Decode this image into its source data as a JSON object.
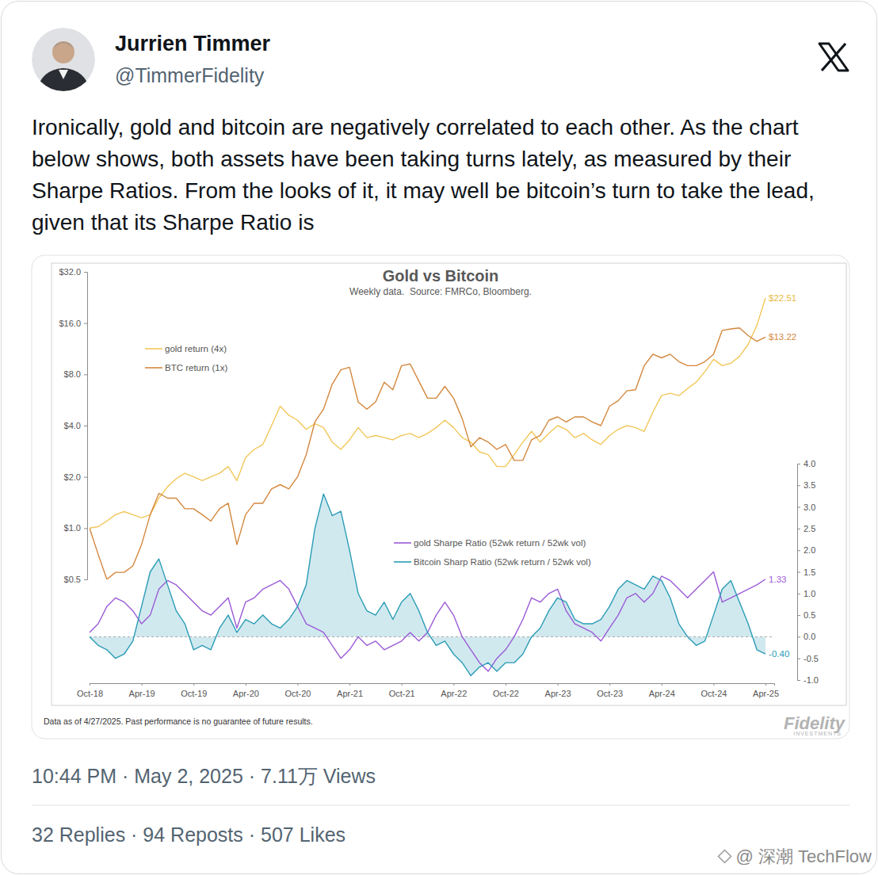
{
  "tweet": {
    "name": "Jurrien Timmer",
    "handle": "@TimmerFidelity",
    "text": "Ironically, gold and bitcoin are negatively correlated to each other. As the chart below shows, both assets have been taking turns lately, as measured by their Sharpe Ratios. From the looks of it, it may well be bitcoin’s turn to take the lead, given that its Sharpe Ratio is",
    "meta": "10:44 PM · May 2, 2025 · 7.11万 Views",
    "stats": "32 Replies · 94 Reposts · 507 Likes",
    "watermark": "@ 深潮 TechFlow"
  },
  "chart_data": [
    {
      "type": "line",
      "title": "Gold vs Bitcoin",
      "subtitle": "Weekly data.  Source: FMRCo, Bloomberg.",
      "log": "y",
      "tick_labels": "y",
      "legend": "upper left",
      "x": [
        0,
        1,
        2,
        3,
        4,
        5,
        6,
        7,
        8,
        9,
        10,
        11,
        12,
        13,
        14,
        15,
        16,
        17,
        18,
        19,
        20,
        21,
        22,
        23,
        24,
        25,
        26,
        27,
        28,
        29,
        30,
        31,
        32,
        33,
        34,
        35,
        36,
        37,
        38,
        39,
        40,
        41,
        42,
        43,
        44,
        45,
        46,
        47,
        48,
        49,
        50,
        51,
        52,
        53,
        54,
        55,
        56,
        57,
        58,
        59,
        60,
        61,
        62,
        63,
        64,
        65,
        66,
        67,
        68,
        69,
        70,
        71,
        72,
        73,
        74,
        75,
        76,
        77,
        78
      ],
      "xlim": [
        0,
        79
      ],
      "ylim": [
        0.5,
        32
      ],
      "yticks": [
        {
          "value": 0.5,
          "label": "$0.5"
        },
        {
          "value": 1,
          "label": "$1.0"
        },
        {
          "value": 2,
          "label": "$2.0"
        },
        {
          "value": 4,
          "label": "$4.0"
        },
        {
          "value": 8,
          "label": "$8.0"
        },
        {
          "value": 16,
          "label": "$16.0"
        },
        {
          "value": 32,
          "label": "$32.0"
        }
      ],
      "series": [
        {
          "name": "gold return (4x)",
          "color": "#f2c75a",
          "values": [
            1.0,
            1.02,
            1.1,
            1.2,
            1.25,
            1.2,
            1.15,
            1.2,
            1.5,
            1.75,
            1.95,
            2.1,
            2.0,
            1.9,
            2.0,
            2.1,
            2.3,
            1.9,
            2.6,
            2.9,
            3.1,
            4.0,
            5.2,
            4.6,
            4.3,
            3.8,
            4.1,
            3.9,
            3.2,
            2.9,
            3.3,
            3.9,
            3.4,
            3.5,
            3.4,
            3.3,
            3.5,
            3.6,
            3.4,
            3.6,
            3.9,
            4.3,
            3.9,
            3.4,
            3.2,
            2.8,
            2.7,
            2.3,
            2.3,
            2.7,
            3.2,
            3.7,
            3.2,
            3.6,
            4.0,
            3.8,
            3.4,
            3.6,
            3.3,
            3.1,
            3.5,
            3.8,
            4.0,
            3.9,
            3.7,
            4.8,
            6.0,
            6.2,
            6.0,
            6.6,
            7.2,
            8.3,
            9.8,
            9.0,
            9.3,
            10.2,
            12.0,
            15.5,
            22.51
          ]
        },
        {
          "name": "BTC return (1x)",
          "color": "#d4873d",
          "values": [
            1.0,
            0.7,
            0.5,
            0.55,
            0.55,
            0.6,
            0.8,
            1.2,
            1.6,
            1.5,
            1.5,
            1.3,
            1.3,
            1.2,
            1.1,
            1.3,
            1.4,
            0.8,
            1.2,
            1.4,
            1.4,
            1.7,
            1.8,
            1.7,
            2.0,
            2.7,
            4.2,
            5.0,
            7.0,
            8.5,
            8.8,
            5.5,
            5.0,
            5.5,
            7.2,
            6.5,
            9.0,
            9.2,
            7.3,
            5.8,
            5.8,
            6.8,
            5.8,
            4.4,
            3.0,
            3.4,
            3.2,
            2.9,
            3.1,
            2.5,
            2.5,
            3.3,
            3.5,
            4.3,
            4.5,
            4.2,
            4.5,
            4.5,
            4.2,
            4.0,
            5.2,
            5.6,
            6.4,
            6.5,
            9.0,
            10.5,
            10.0,
            10.5,
            9.5,
            9.0,
            9.0,
            9.5,
            10.5,
            14.5,
            14.8,
            15.0,
            13.5,
            12.5,
            13.22
          ]
        }
      ],
      "annotations": [
        {
          "text": "$22.51",
          "x": 78,
          "y": 22.51,
          "color": "#e8b93e"
        },
        {
          "text": "$13.22",
          "x": 78,
          "y": 13.22,
          "color": "#d4873d"
        }
      ]
    },
    {
      "type": "line",
      "legend": "upper center",
      "baseline": 0,
      "x": [
        0,
        1,
        2,
        3,
        4,
        5,
        6,
        7,
        8,
        9,
        10,
        11,
        12,
        13,
        14,
        15,
        16,
        17,
        18,
        19,
        20,
        21,
        22,
        23,
        24,
        25,
        26,
        27,
        28,
        29,
        30,
        31,
        32,
        33,
        34,
        35,
        36,
        37,
        38,
        39,
        40,
        41,
        42,
        43,
        44,
        45,
        46,
        47,
        48,
        49,
        50,
        51,
        52,
        53,
        54,
        55,
        56,
        57,
        58,
        59,
        60,
        61,
        62,
        63,
        64,
        65,
        66,
        67,
        68,
        69,
        70,
        71,
        72,
        73,
        74,
        75,
        76,
        77,
        78
      ],
      "xlim": [
        0,
        79
      ],
      "xticks": [
        {
          "value": 0,
          "label": "Oct-18"
        },
        {
          "value": 6,
          "label": "Apr-19"
        },
        {
          "value": 12,
          "label": "Oct-19"
        },
        {
          "value": 18,
          "label": "Apr-20"
        },
        {
          "value": 24,
          "label": "Oct-20"
        },
        {
          "value": 30,
          "label": "Apr-21"
        },
        {
          "value": 36,
          "label": "Oct-21"
        },
        {
          "value": 42,
          "label": "Apr-22"
        },
        {
          "value": 48,
          "label": "Oct-22"
        },
        {
          "value": 54,
          "label": "Apr-23"
        },
        {
          "value": 60,
          "label": "Oct-23"
        },
        {
          "value": 66,
          "label": "Apr-24"
        },
        {
          "value": 72,
          "label": "Oct-24"
        },
        {
          "value": 78,
          "label": "Apr-25"
        }
      ],
      "ylim": [
        -1,
        4
      ],
      "yticks": [
        {
          "value": -1,
          "label": "-1.0"
        },
        {
          "value": -0.5,
          "label": "-0.5"
        },
        {
          "value": 0,
          "label": "0.0"
        },
        {
          "value": 0.5,
          "label": "0.5"
        },
        {
          "value": 1,
          "label": "1.0"
        },
        {
          "value": 1.5,
          "label": "1.5"
        },
        {
          "value": 2,
          "label": "2.0"
        },
        {
          "value": 2.5,
          "label": "2.5"
        },
        {
          "value": 3,
          "label": "3.0"
        },
        {
          "value": 3.5,
          "label": "3.5"
        },
        {
          "value": 4,
          "label": "4.0"
        }
      ],
      "series": [
        {
          "name": "gold Sharpe Ratio (52wk return / 52wk vol)",
          "color": "#9b5bd6",
          "type": "line",
          "values": [
            0.1,
            0.3,
            0.7,
            0.9,
            0.8,
            0.6,
            0.3,
            0.5,
            1.1,
            1.3,
            1.2,
            1.0,
            0.8,
            0.6,
            0.5,
            0.7,
            0.9,
            0.2,
            0.8,
            0.9,
            1.1,
            1.2,
            1.3,
            1.1,
            0.7,
            0.3,
            0.2,
            0.1,
            -0.2,
            -0.5,
            -0.3,
            0.0,
            -0.2,
            -0.1,
            -0.3,
            -0.2,
            -0.1,
            0.1,
            -0.1,
            0.1,
            0.5,
            0.8,
            0.5,
            0.0,
            -0.3,
            -0.6,
            -0.8,
            -0.5,
            -0.3,
            0.0,
            0.4,
            0.9,
            0.8,
            1.0,
            1.1,
            0.6,
            0.3,
            0.2,
            0.1,
            -0.1,
            0.2,
            0.5,
            0.9,
            1.0,
            0.8,
            1.0,
            1.4,
            1.3,
            1.1,
            0.9,
            1.1,
            1.3,
            1.5,
            0.8,
            0.9,
            1.0,
            1.1,
            1.2,
            1.33
          ]
        },
        {
          "name": "Bitcoin Sharp Ratio (52wk return / 52wk vol)",
          "color": "#2b9cb5",
          "type": "area",
          "values": [
            0.0,
            -0.2,
            -0.3,
            -0.5,
            -0.4,
            -0.1,
            0.7,
            1.5,
            1.8,
            1.2,
            0.6,
            0.3,
            -0.3,
            -0.2,
            -0.3,
            0.2,
            0.5,
            0.1,
            0.4,
            0.3,
            0.5,
            0.3,
            0.2,
            0.4,
            0.7,
            1.2,
            2.5,
            3.3,
            2.8,
            2.9,
            2.0,
            1.0,
            0.6,
            0.5,
            0.8,
            0.4,
            0.8,
            1.0,
            0.6,
            0.1,
            -0.2,
            -0.1,
            -0.4,
            -0.6,
            -0.9,
            -0.7,
            -0.6,
            -0.8,
            -0.6,
            -0.6,
            -0.4,
            0.0,
            0.2,
            0.6,
            0.9,
            0.8,
            0.4,
            0.3,
            0.3,
            0.4,
            0.7,
            1.1,
            1.3,
            1.2,
            1.1,
            1.4,
            1.3,
            0.9,
            0.3,
            0.0,
            -0.2,
            -0.1,
            0.5,
            1.1,
            1.3,
            0.8,
            0.3,
            -0.3,
            -0.4
          ]
        }
      ],
      "annotations": [
        {
          "text": "1.33",
          "x": 78,
          "y": 1.33,
          "color": "#9b5bd6"
        },
        {
          "text": "-0.40",
          "x": 78,
          "y": -0.4,
          "color": "#2b9cb5"
        }
      ]
    }
  ],
  "chart_footer": {
    "note": "Data as of 4/27/2025. Past performance is no guarantee of future results.",
    "logo": "Fidelity",
    "logo_sub": "INVESTMENTS"
  }
}
